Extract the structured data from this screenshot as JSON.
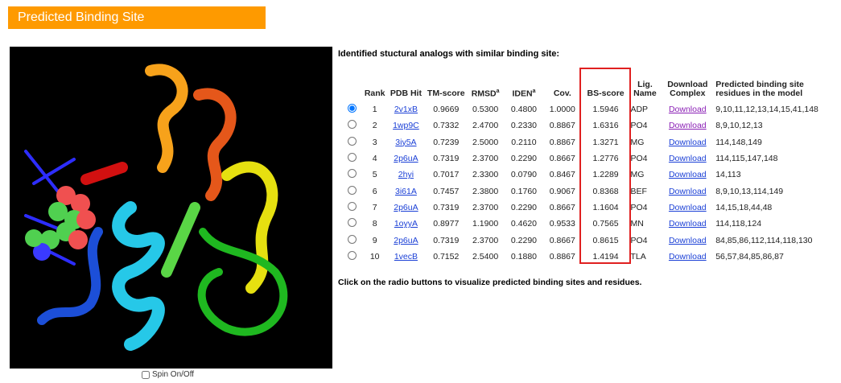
{
  "header": {
    "title": "Predicted Binding Site"
  },
  "intro": "Identified stuctural analogs with similar binding site:",
  "table": {
    "headers": [
      {
        "text": ""
      },
      {
        "text": "Rank"
      },
      {
        "text": "PDB Hit"
      },
      {
        "text": "TM-score"
      },
      {
        "text": "RMSD",
        "sup": "a"
      },
      {
        "text": "IDEN",
        "sup": "a"
      },
      {
        "text": "Cov."
      },
      {
        "text": "BS-score"
      },
      {
        "text": "Lig. Name"
      },
      {
        "text": "Download Complex"
      },
      {
        "text": "Predicted binding site residues in the model"
      }
    ],
    "rows": [
      [
        "1",
        "2v1xB",
        "0.9669",
        "0.5300",
        "0.4800",
        "1.0000",
        "1.5946",
        "ADP",
        "Download",
        "9,10,11,12,13,14,15,41,148"
      ],
      [
        "2",
        "1wp9C",
        "0.7332",
        "2.4700",
        "0.2330",
        "0.8867",
        "1.6316",
        "PO4",
        "Download",
        "8,9,10,12,13"
      ],
      [
        "3",
        "3iy5A",
        "0.7239",
        "2.5000",
        "0.2110",
        "0.8867",
        "1.3271",
        "MG",
        "Download",
        "114,148,149"
      ],
      [
        "4",
        "2p6uA",
        "0.7319",
        "2.3700",
        "0.2290",
        "0.8667",
        "1.2776",
        "PO4",
        "Download",
        "114,115,147,148"
      ],
      [
        "5",
        "2hyi",
        "0.7017",
        "2.3300",
        "0.0790",
        "0.8467",
        "1.2289",
        "MG",
        "Download",
        "14,113"
      ],
      [
        "6",
        "3i61A",
        "0.7457",
        "2.3800",
        "0.1760",
        "0.9067",
        "0.8368",
        "BEF",
        "Download",
        "8,9,10,13,114,149"
      ],
      [
        "7",
        "2p6uA",
        "0.7319",
        "2.3700",
        "0.2290",
        "0.8667",
        "1.1604",
        "PO4",
        "Download",
        "14,15,18,44,48"
      ],
      [
        "8",
        "1oyyA",
        "0.8977",
        "1.1900",
        "0.4620",
        "0.9533",
        "0.7565",
        "MN",
        "Download",
        "114,118,124"
      ],
      [
        "9",
        "2p6uA",
        "0.7319",
        "2.3700",
        "0.2290",
        "0.8667",
        "0.8615",
        "PO4",
        "Download",
        "84,85,86,112,114,118,130"
      ],
      [
        "10",
        "1vecB",
        "0.7152",
        "2.5400",
        "0.1880",
        "0.8867",
        "1.4194",
        "TLA",
        "Download",
        "56,57,84,85,86,87"
      ]
    ]
  },
  "note": "Click on the radio buttons to visualize predicted binding sites and residues.",
  "spin_label": "Spin On/Off"
}
